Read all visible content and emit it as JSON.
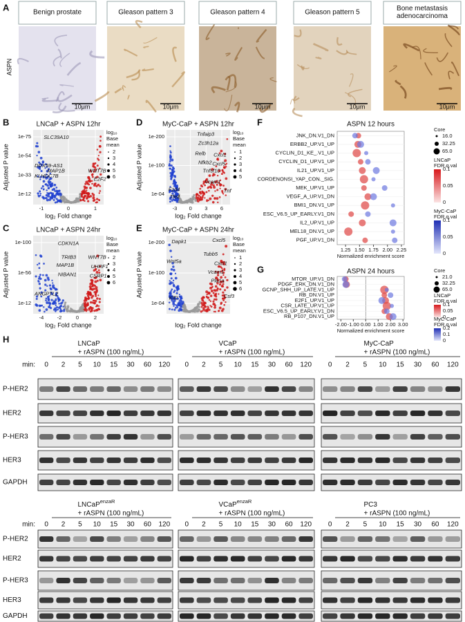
{
  "panel_a": {
    "label": "A",
    "row_label": "ASPN",
    "panels": [
      {
        "title": [
          "Benign prostate"
        ],
        "scale": "10μm"
      },
      {
        "title": [
          "Gleason pattern 3"
        ],
        "scale": "10μm"
      },
      {
        "title": [
          "Gleason pattern 4"
        ],
        "scale": "10μm"
      },
      {
        "title": [
          "Gleason pattern 5"
        ],
        "scale": "10μm"
      },
      {
        "title": [
          "Bone metastasis",
          "adenocarcinoma"
        ],
        "scale": "10μm"
      }
    ]
  },
  "volcano": [
    {
      "label": "B",
      "title": "LNCaP + ASPN 12hr",
      "y_label": "Adjusted P value",
      "x_label": "log₂ Fold change",
      "yticks": [
        "1e-75",
        "1e-54",
        "1e-33",
        "1e-12"
      ],
      "xticks": [
        "-1",
        "0",
        "1"
      ],
      "genes": [
        "SLC39A10",
        "DDX59-AS1",
        "MAP1B",
        "KLHDC7B",
        "WNT7B",
        "E2F2"
      ],
      "legend_title": [
        "log₁₀",
        "Base",
        "mean"
      ],
      "legend": [
        "2",
        "3",
        "4",
        "5",
        "6"
      ]
    },
    {
      "label": "C",
      "title": "LNCaP + ASPN 24hr",
      "y_label": "Adjusted P value",
      "x_label": "log₂ Fold change",
      "yticks": [
        "1e-100",
        "1e-56",
        "1e-12"
      ],
      "xticks": [
        "-4",
        "-2",
        "0",
        "2"
      ],
      "genes": [
        "CDKN1A",
        "TRIB3",
        "MAP1B",
        "NIBAN1",
        "ANGPTL2",
        "WNT7B",
        "UHRF1",
        "CSRP1"
      ],
      "legend_title": [
        "log₁₀",
        "Base",
        "mean"
      ],
      "legend": [
        "2",
        "3",
        "4",
        "5",
        "6"
      ]
    },
    {
      "label": "D",
      "title": "MyC-CaP + ASPN 12hr",
      "y_label": "Adjusted P value",
      "x_label": "log₂ Fold change",
      "yticks": [
        "1e-200",
        "1e-100",
        "1e-04"
      ],
      "xticks": [
        "-3",
        "0",
        "3",
        "6"
      ],
      "genes": [
        "Tnfaip3",
        "Zc3h12a",
        "Relb",
        "Nfkb2",
        "Cxcl1",
        "Cxcl5",
        "Tnfsf10",
        "Vcam1",
        "Tnf",
        "Fzd4",
        "Tle2"
      ],
      "legend_title": [
        "log₁₀",
        "Base",
        "mean"
      ],
      "legend": [
        "1",
        "2",
        "3",
        "4",
        "5"
      ]
    },
    {
      "label": "E",
      "title": "MyC-CaP + ASPN 24hr",
      "y_label": "Adjusted P value",
      "x_label": "log₂ Fold change",
      "yticks": [
        "1e-200",
        "1e-100",
        "1e-04"
      ],
      "genes": [
        "Dapk1",
        "Wnt5a",
        "Klf2",
        "Cxcl5",
        "Tubb5",
        "Cxcl1",
        "Vcam1",
        "Pla1a",
        "Csf3"
      ],
      "legend_title": [
        "log₁₀",
        "Base",
        "mean"
      ],
      "legend": [
        "1",
        "2",
        "3",
        "4",
        "5",
        "6"
      ]
    }
  ],
  "gsea": [
    {
      "label": "F",
      "title": "ASPN 12 hours",
      "x_label": "Normalized enrichment score",
      "xlim": [
        1.1,
        2.3
      ],
      "xticks": [
        {
          "value": 1.25,
          "label": "1.25"
        },
        {
          "value": 1.5,
          "label": "1.50"
        },
        {
          "value": 1.75,
          "label": "1.75"
        },
        {
          "value": 2.0,
          "label": "2.00"
        },
        {
          "value": 2.25,
          "label": "2.25"
        }
      ],
      "rows": [
        {
          "name": "JNK_DN.V1_DN",
          "lncap": 1.48,
          "mycap": 1.42
        },
        {
          "name": "ERBB2_UP.V1_UP",
          "lncap": 1.47,
          "mycap": 1.52,
          "color": "#4a78c8"
        },
        {
          "name": "CYCLIN_D1_KE_.V1_UP",
          "lncap": 1.45,
          "mycap": 1.62
        },
        {
          "name": "CYCLIN_D1_UP.V1_UP",
          "lncap": 1.52,
          "mycap": 1.65
        },
        {
          "name": "IL21_UP.V1_UP",
          "lncap": 1.55,
          "mycap": 1.8
        },
        {
          "name": "CORDENONSI_YAP_CON._SIG.",
          "lncap": 1.58,
          "mycap": 1.75
        },
        {
          "name": "MEK_UP.V1_UP",
          "lncap": 1.58,
          "mycap": 1.95
        },
        {
          "name": "VEGF_A_UP.V1_DN",
          "lncap": 1.65,
          "mycap": 1.75
        },
        {
          "name": "BMI1_DN.V1_UP",
          "lncap": 1.6,
          "mycap": 2.1
        },
        {
          "name": "ESC_V6.5_UP_EARLY.V1_DN",
          "lncap": 1.35,
          "mycap": 1.65
        },
        {
          "name": "IL2_UP.V1_UP",
          "lncap": 1.55,
          "mycap": 2.1
        },
        {
          "name": "MEL18_DN.V1_UP",
          "lncap": 1.3,
          "mycap": 2.1
        },
        {
          "name": "PGF_UP.V1_DN",
          "lncap": 1.6,
          "mycap": 2.13
        }
      ],
      "core_title": "Core",
      "core": [
        "16.0",
        "32.25",
        "65.0"
      ],
      "scales": [
        {
          "title": [
            "LNCaP",
            "FDR.q.val"
          ],
          "ticks": [
            "0.1",
            "0.05",
            "0"
          ]
        },
        {
          "title": [
            "MyC-CaP",
            "FDR.q.val"
          ],
          "ticks": [
            "0.1",
            "0.05",
            "0"
          ]
        }
      ]
    },
    {
      "label": "G",
      "title": "ASPN 24 hours",
      "x_label": "Normalized enrichment score",
      "xlim": [
        -2.3,
        3.1
      ],
      "xticks": [
        {
          "value": -2,
          "label": "-2.00"
        },
        {
          "value": -1,
          "label": "-1.00"
        },
        {
          "value": 0,
          "label": "0.00"
        },
        {
          "value": 1,
          "label": "1.00"
        },
        {
          "value": 2,
          "label": "2.00"
        },
        {
          "value": 3,
          "label": "3.00"
        }
      ],
      "rows": [
        {
          "name": "MTOR_UP.V1_DN",
          "lncap": -1.6,
          "mycap": -1.7
        },
        {
          "name": "PDGF_ERK_DN.V1_DN",
          "lncap": -1.55,
          "mycap": -1.6
        },
        {
          "name": "GCNP_SHH_UP_LATE.V1_UP",
          "lncap": 1.5,
          "mycap": 1.7
        },
        {
          "name": "RB_DN.V1_UP",
          "lncap": 1.5,
          "mycap": 2.0
        },
        {
          "name": "E2F1_UP.V1_UP",
          "lncap": 1.6,
          "mycap": 1.3
        },
        {
          "name": "CSR_LATE_UP.V1_UP",
          "lncap": 1.7,
          "mycap": 2.1
        },
        {
          "name": "ESC_V6.5_UP_EARLY.V1_DN",
          "lncap": 1.5,
          "mycap": 1.7
        },
        {
          "name": "RB_P107_DN.V1_UP",
          "lncap": 1.9,
          "mycap": 2.2
        }
      ],
      "core_title": "Core",
      "core": [
        "21.0",
        "32.25",
        "65.0"
      ],
      "scales": [
        {
          "title": [
            "LNCaP",
            "FDR.q.val"
          ],
          "ticks": [
            "0.1",
            "0.05",
            "0"
          ]
        },
        {
          "title": [
            "MyC-CaP",
            "FDR.q.val"
          ],
          "ticks": [
            "0.2",
            "0.1",
            "0"
          ]
        }
      ]
    }
  ],
  "panel_h": {
    "label": "H",
    "min_label": "min:",
    "times": [
      "0",
      "2",
      "5",
      "10",
      "15",
      "30",
      "60",
      "120"
    ],
    "rows": [
      "P-HER2",
      "HER2",
      "P-HER3",
      "HER3",
      "GAPDH"
    ],
    "groups": [
      {
        "cell": "LNCaP",
        "treatment": "+ rASPN (100 ng/mL)"
      },
      {
        "cell": "VCaP",
        "treatment": "+ rASPN (100 ng/mL)"
      },
      {
        "cell": "MyC-CaP",
        "treatment": "+ rASPN (100 ng/mL)"
      },
      {
        "cell": "LNCaP",
        "sup": "enzaR",
        "treatment": "+ rASPN (100 ng/mL)"
      },
      {
        "cell": "VCaP",
        "sup": "enzaR",
        "treatment": "+ rASPN (100 ng/mL)"
      },
      {
        "cell": "PC3",
        "treatment": "+ rASPN (100 ng/mL)"
      }
    ]
  }
}
